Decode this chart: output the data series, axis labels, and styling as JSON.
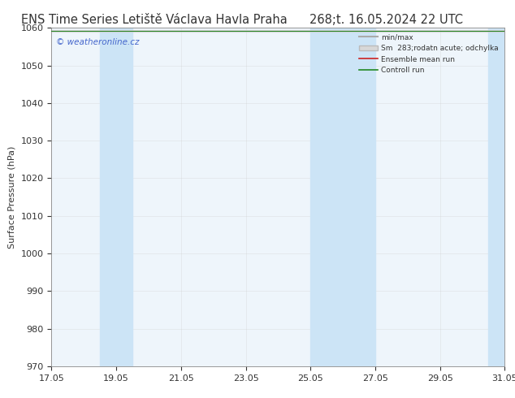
{
  "title_left": "ENS Time Series Letiště Václava Havla Praha",
  "title_right": "268;t. 16.05.2024 22 UTC",
  "ylabel": "Surface Pressure (hPa)",
  "ylim": [
    970,
    1060
  ],
  "yticks": [
    970,
    980,
    990,
    1000,
    1010,
    1020,
    1030,
    1040,
    1050,
    1060
  ],
  "xlim_start": 0,
  "xlim_end": 14,
  "xtick_labels": [
    "17.05",
    "19.05",
    "21.05",
    "23.05",
    "25.05",
    "27.05",
    "29.05",
    "31.05"
  ],
  "xtick_positions": [
    0,
    2,
    4,
    6,
    8,
    10,
    12,
    14
  ],
  "bg_color": "#ffffff",
  "plot_bg_color": "#eef5fb",
  "blue_band_color": "#cce4f6",
  "watermark": "© weatheronline.cz",
  "watermark_color": "#4466cc",
  "blue_bands": [
    {
      "x_start": 1.5,
      "x_end": 2.5
    },
    {
      "x_start": 8.0,
      "x_end": 10.0
    },
    {
      "x_start": 13.5,
      "x_end": 14.0
    }
  ],
  "flat_value": 1059.2,
  "ensemble_mean_color": "#cc2222",
  "control_run_color": "#228822",
  "minmax_color": "#aaaaaa",
  "smband_color": "#cccccc",
  "title_fontsize": 10.5,
  "axis_label_fontsize": 8,
  "tick_fontsize": 8
}
